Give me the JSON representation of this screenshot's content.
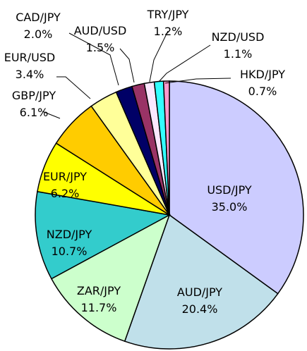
{
  "chart_data": {
    "type": "pie",
    "title": "",
    "slices": [
      {
        "label": "USD/JPY",
        "value": 35.0,
        "value_text": "35.0%",
        "color": "#ccccff"
      },
      {
        "label": "AUD/JPY",
        "value": 20.4,
        "value_text": "20.4%",
        "color": "#c0e0ea"
      },
      {
        "label": "ZAR/JPY",
        "value": 11.7,
        "value_text": "11.7%",
        "color": "#ccffcc"
      },
      {
        "label": "NZD/JPY",
        "value": 10.7,
        "value_text": "10.7%",
        "color": "#33cccc"
      },
      {
        "label": "EUR/JPY",
        "value": 6.2,
        "value_text": "6.2%",
        "color": "#ffff00"
      },
      {
        "label": "GBP/JPY",
        "value": 6.1,
        "value_text": "6.1%",
        "color": "#ffcc00"
      },
      {
        "label": "EUR/USD",
        "value": 3.4,
        "value_text": "3.4%",
        "color": "#ffff99"
      },
      {
        "label": "CAD/JPY",
        "value": 2.0,
        "value_text": "2.0%",
        "color": "#000066"
      },
      {
        "label": "AUD/USD",
        "value": 1.5,
        "value_text": "1.5%",
        "color": "#993366"
      },
      {
        "label": "TRY/JPY",
        "value": 1.2,
        "value_text": "1.2%",
        "color": "#fbe8ff"
      },
      {
        "label": "NZD/USD",
        "value": 1.1,
        "value_text": "1.1%",
        "color": "#33ffff"
      },
      {
        "label": "HKD/JPY",
        "value": 0.7,
        "value_text": "0.7%",
        "color": "#ff99cc"
      }
    ]
  }
}
